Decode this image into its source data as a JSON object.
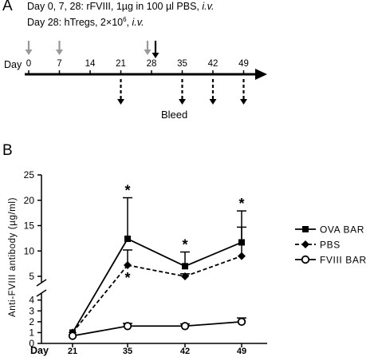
{
  "panel_a": {
    "letter": "A",
    "protocol_line1_prefix": "Day 0, 7, 28: rFVIII, 1µg in 100 µl PBS, ",
    "protocol_line1_route": "i.v.",
    "protocol_line2_prefix": "Day 28: hTregs, 2×10",
    "protocol_line2_exp": "6",
    "protocol_line2_sep": ", ",
    "protocol_line2_route": "i.v.",
    "timeline_label": "Day",
    "timeline_days": [
      "0",
      "7",
      "14",
      "21",
      "28",
      "35",
      "42",
      "49"
    ],
    "injection_days": [
      0,
      7,
      28
    ],
    "treg_day": 28,
    "bleed_days": [
      21,
      35,
      42,
      49
    ],
    "bleed_label": "Bleed",
    "colors": {
      "injection_arrow": "#999999",
      "treg_arrow": "#000000",
      "bleed_arrow": "#000000"
    }
  },
  "panel_b": {
    "letter": "B",
    "chart_data": {
      "type": "line",
      "x_axis_label": "Day",
      "x_categories": [
        "21",
        "35",
        "42",
        "49"
      ],
      "ylabel": "Anti-FVIII antibody (µg/ml)",
      "y_axis": "broken",
      "y_lower_ticks": [
        "0",
        "1",
        "2",
        "3",
        "4"
      ],
      "y_upper_ticks": [
        "5",
        "10",
        "15",
        "20",
        "25"
      ],
      "y_lower_range": [
        0,
        4.2
      ],
      "y_upper_range": [
        5,
        25
      ],
      "series": [
        {
          "name": "OVA BAR",
          "marker": "square",
          "line": "solid",
          "values": [
            1.0,
            12.4,
            7.0,
            11.7
          ],
          "error_up": [
            0.1,
            8.1,
            2.8,
            6.2
          ]
        },
        {
          "name": "PBS",
          "marker": "diamond",
          "line": "dashed",
          "values": [
            1.0,
            7.2,
            5.0,
            9.0
          ],
          "error_up": [
            0.1,
            3.0,
            0.5,
            5.7
          ]
        },
        {
          "name": "FVIII BAR",
          "marker": "open-circle",
          "line": "solid",
          "values": [
            0.7,
            1.6,
            1.6,
            2.0
          ],
          "error_up": [
            0.1,
            0.25,
            0.2,
            0.35
          ]
        }
      ],
      "significance": [
        {
          "day": "35",
          "mark": "*",
          "series": "OVA BAR"
        },
        {
          "day": "35",
          "mark": "*",
          "series": "PBS"
        },
        {
          "day": "42",
          "mark": "*",
          "series": "OVA BAR"
        },
        {
          "day": "49",
          "mark": "*",
          "series": "OVA BAR"
        }
      ],
      "legend_placement": "right"
    }
  }
}
